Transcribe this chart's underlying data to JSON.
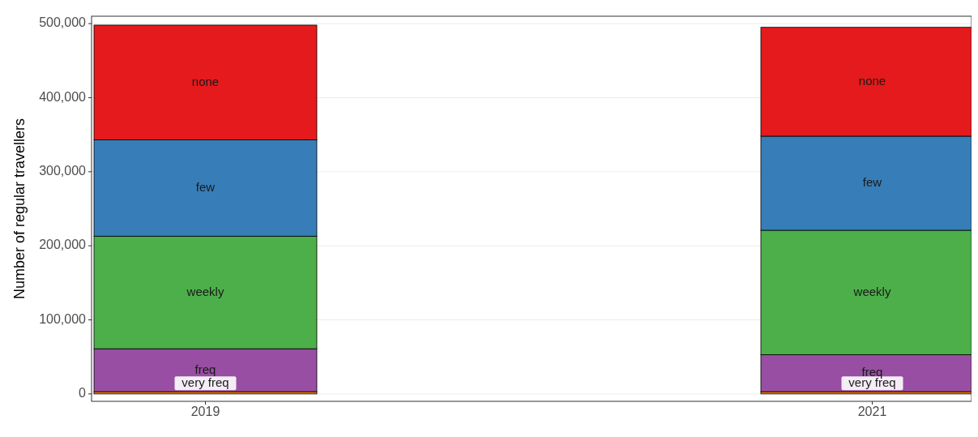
{
  "chart_data": {
    "type": "bar",
    "stacked": true,
    "ylabel": "Number of regular travellers",
    "categories": [
      "2019",
      "2021"
    ],
    "series": [
      {
        "name": "very freq",
        "color": "#ff7f00",
        "values": [
          3000,
          3000
        ]
      },
      {
        "name": "freq",
        "color": "#984ea3",
        "values": [
          58000,
          50000
        ]
      },
      {
        "name": "weekly",
        "color": "#4daf4a",
        "values": [
          152000,
          168000
        ]
      },
      {
        "name": "few",
        "color": "#377eb8",
        "values": [
          130000,
          127000
        ]
      },
      {
        "name": "none",
        "color": "#e41a1c",
        "values": [
          155000,
          147000
        ]
      }
    ],
    "ylim": [
      -10000,
      510000
    ],
    "yticks": [
      0,
      {
        "value": 100000,
        "label": "100,000"
      },
      {
        "value": 200000,
        "label": "200,000"
      },
      {
        "value": 300000,
        "label": "300,000"
      },
      {
        "value": 400000,
        "label": "400,000"
      },
      {
        "value": 500000,
        "label": "500,000"
      }
    ],
    "grid": "y",
    "legend": false
  }
}
